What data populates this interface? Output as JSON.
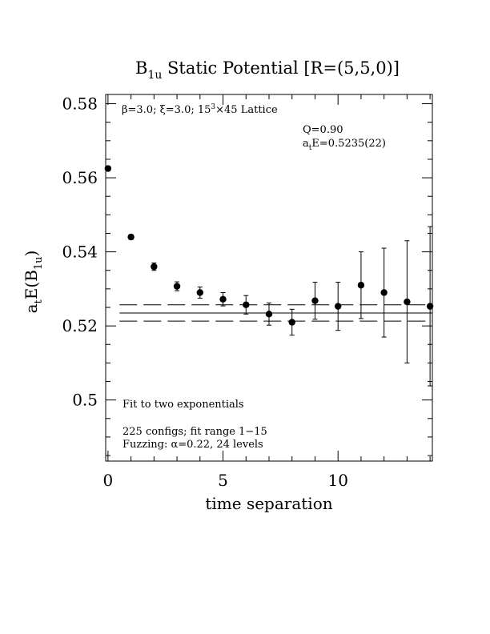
{
  "chart_data": {
    "type": "scatter",
    "title": "B",
    "title_sub": "1u",
    "title_rest": " Static Potential [R=(5,5,0)]",
    "xlabel": "time separation",
    "ylabel_main": "a",
    "ylabel_sub1": "t",
    "ylabel_mid": "E(B",
    "ylabel_sub2": "1u",
    "ylabel_end": ")",
    "xlim": [
      -0.1,
      14.1
    ],
    "ylim": [
      0.4835,
      0.5825
    ],
    "x_ticks": [
      0,
      5,
      10
    ],
    "x_tick_labels": [
      "0",
      "5",
      "10"
    ],
    "y_ticks": [
      0.5,
      0.52,
      0.54,
      0.56,
      0.58
    ],
    "y_tick_labels": [
      "0.5",
      "0.52",
      "0.54",
      "0.56",
      "0.58"
    ],
    "grid": false,
    "points": [
      {
        "x": 0,
        "y": 0.5625,
        "err": 0.0006
      },
      {
        "x": 1,
        "y": 0.544,
        "err": 0.0006
      },
      {
        "x": 2,
        "y": 0.536,
        "err": 0.001
      },
      {
        "x": 3,
        "y": 0.5307,
        "err": 0.0012
      },
      {
        "x": 4,
        "y": 0.529,
        "err": 0.0015
      },
      {
        "x": 5,
        "y": 0.5272,
        "err": 0.0018
      },
      {
        "x": 6,
        "y": 0.5257,
        "err": 0.0025
      },
      {
        "x": 7,
        "y": 0.5232,
        "err": 0.003
      },
      {
        "x": 8,
        "y": 0.521,
        "err": 0.0035
      },
      {
        "x": 9,
        "y": 0.5268,
        "err": 0.005
      },
      {
        "x": 10,
        "y": 0.5253,
        "err": 0.0065
      },
      {
        "x": 11,
        "y": 0.531,
        "err": 0.009
      },
      {
        "x": 12,
        "y": 0.529,
        "err": 0.012
      },
      {
        "x": 13,
        "y": 0.5265,
        "err": 0.0165
      },
      {
        "x": 14,
        "y": 0.5253,
        "err": 0.0215
      }
    ],
    "fit": {
      "value": 0.5235,
      "error": 0.0022
    },
    "annotations": {
      "lattice_beta": "β=3.0; ",
      "lattice_xi": "ξ=3.0; ",
      "lattice_size": "15",
      "lattice_size_sup": "3",
      "lattice_rest": "×45 Lattice",
      "q_value": "Q=0.90",
      "fit_energy_a": "a",
      "fit_energy_sub": "t",
      "fit_energy_rest": "E=0.5235(22)",
      "fit_model": "Fit to two exponentials",
      "configs": "225 configs; fit range 1−15",
      "fuzzing": "Fuzzing: α=0.22, 24 levels"
    }
  }
}
